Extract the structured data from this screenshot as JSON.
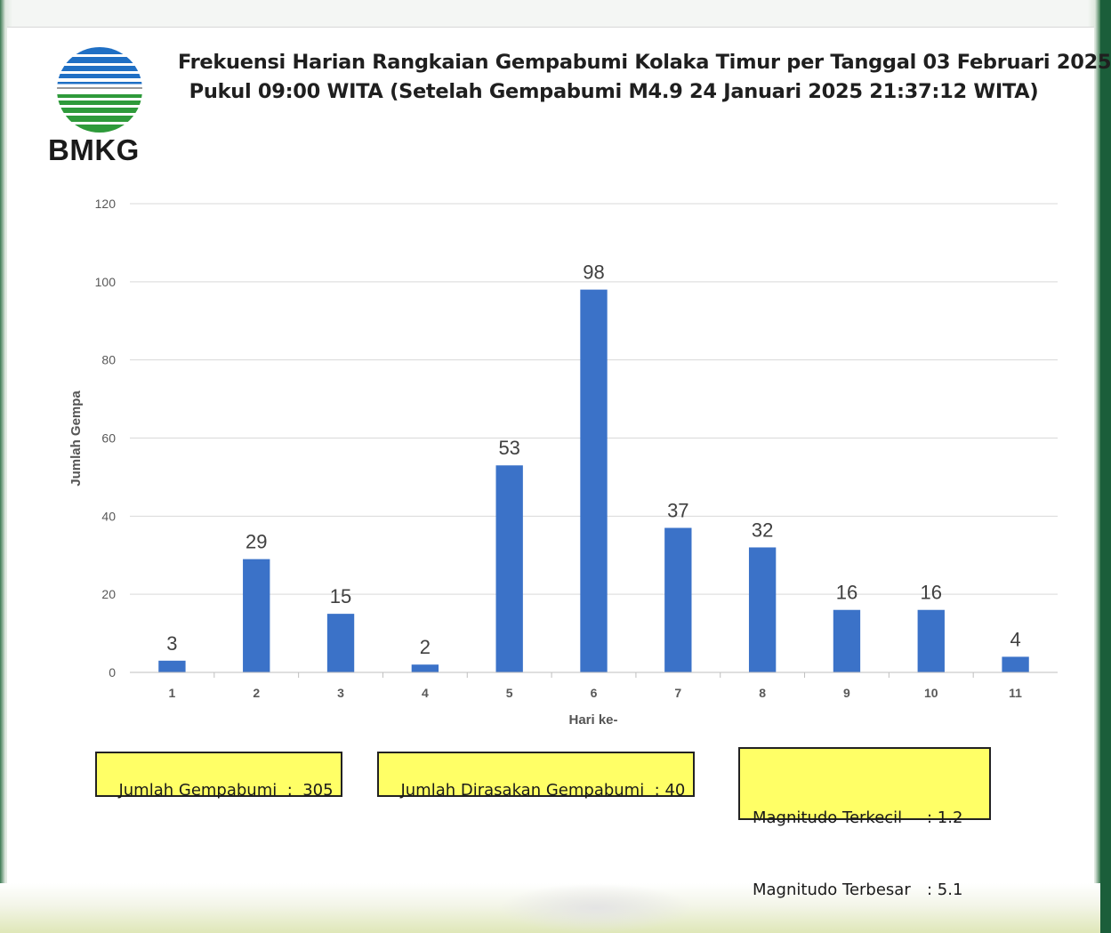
{
  "title_line1": "Frekuensi Harian Rangkaian Gempabumi Kolaka Timur per Tanggal 03 Februari 2025",
  "title_line2": "Pukul 09:00 WITA (Setelah Gempabumi M4.9 24 Januari 2025 21:37:12 WITA)",
  "logo": {
    "text": "BMKG",
    "colors": {
      "blue": "#1f6fc4",
      "green": "#2e9a3a"
    }
  },
  "bar_color": "#3b72c8",
  "chart_data": {
    "type": "bar",
    "title": "Frekuensi Harian Rangkaian Gempabumi Kolaka Timur per Tanggal 03 Februari 2025 Pukul 09:00 WITA (Setelah Gempabumi M4.9 24 Januari 2025 21:37:12 WITA)",
    "categories": [
      "1",
      "2",
      "3",
      "4",
      "5",
      "6",
      "7",
      "8",
      "9",
      "10",
      "11"
    ],
    "values": [
      3,
      29,
      15,
      2,
      53,
      98,
      37,
      32,
      16,
      16,
      4
    ],
    "xlabel": "Hari ke-",
    "ylabel": "Jumlah Gempa",
    "ylim": [
      0,
      120
    ],
    "yticks": [
      0,
      20,
      40,
      60,
      80,
      100,
      120
    ],
    "grid": true,
    "data_labels": true
  },
  "summary": {
    "total_label": "Jumlah Gempabumi  :  305",
    "felt_label": "Jumlah Dirasakan Gempabumi  : 40",
    "mag_min_label": "Magnitudo Terkecil",
    "mag_min_value": ": 1.2",
    "mag_max_label": "Magnitudo Terbesar",
    "mag_max_value": ": 5.1"
  }
}
